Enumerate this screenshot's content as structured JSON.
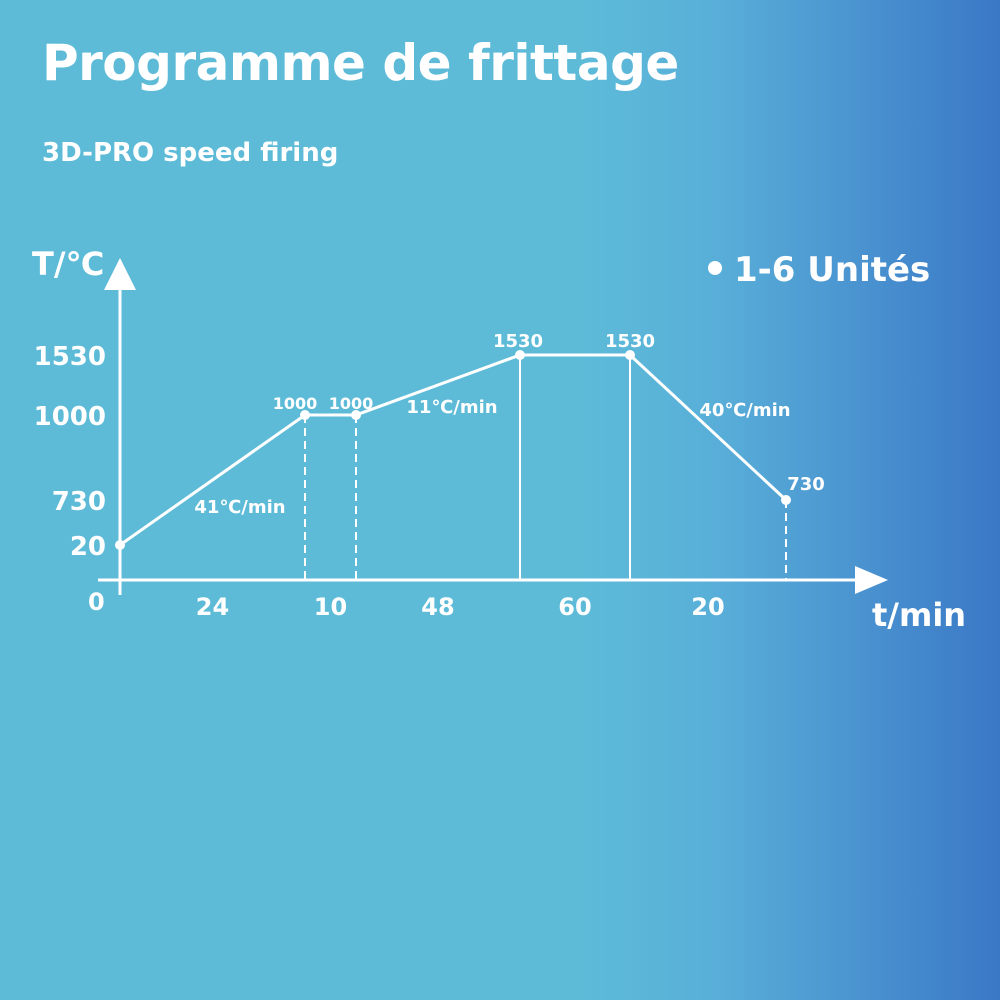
{
  "title": "Programme de frittage",
  "subtitle": "3D-PRO speed firing",
  "units_note": "1-6 Unités",
  "chart_data": {
    "type": "line",
    "xlabel": "t/min",
    "ylabel": "T/℃",
    "origin_label": "0",
    "y_ticks": [
      20,
      730,
      1000,
      1530
    ],
    "segment_durations": [
      24,
      10,
      48,
      60,
      20
    ],
    "points": [
      {
        "t": 0,
        "T": 20,
        "label": ""
      },
      {
        "t": 24,
        "T": 1000,
        "label": "1000"
      },
      {
        "t": 34,
        "T": 1000,
        "label": "1000"
      },
      {
        "t": 82,
        "T": 1530,
        "label": "1530"
      },
      {
        "t": 142,
        "T": 1530,
        "label": "1530"
      },
      {
        "t": 162,
        "T": 730,
        "label": "730"
      }
    ],
    "rate_labels": [
      "41℃/min",
      "11℃/min",
      "40℃/min"
    ],
    "color": "#ffffff"
  }
}
